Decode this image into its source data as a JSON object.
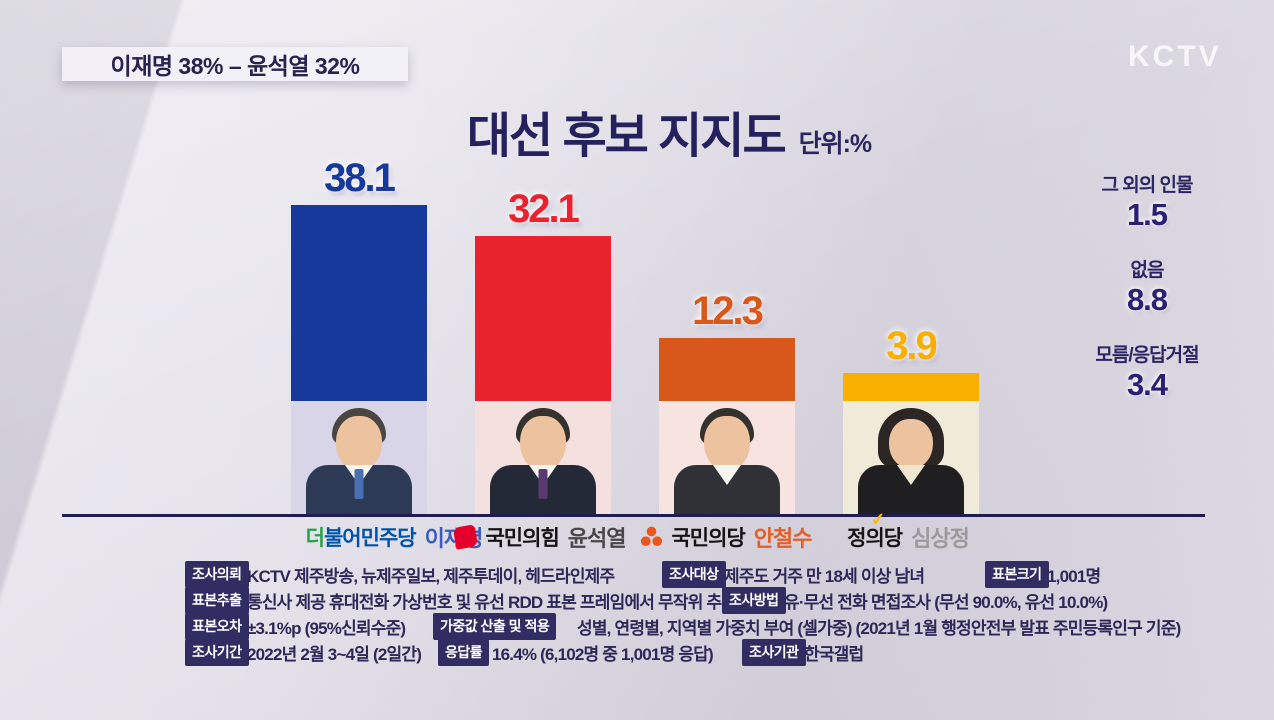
{
  "header": {
    "ticker": "이재명 38% – 윤석열 32%",
    "watermark": "KCTV",
    "title": "대선 후보 지지도",
    "unit": "단위:%"
  },
  "chart_data": {
    "type": "bar",
    "title": "대선 후보 지지도",
    "unit": "%",
    "categories": [
      "이재명",
      "윤석열",
      "안철수",
      "심상정"
    ],
    "values": [
      38.1,
      32.1,
      12.3,
      3.9
    ],
    "bar_colors": [
      "#16399b",
      "#e9232e",
      "#d8571b",
      "#f9af00"
    ],
    "ylim": [
      0,
      40
    ],
    "legend_position": "none",
    "grid": false,
    "candidates": [
      {
        "name": "이재명",
        "party": "더불어민주당",
        "value": "38.1",
        "name_color": "#3a5dbe"
      },
      {
        "name": "윤석열",
        "party": "국민의힘",
        "value": "32.1",
        "name_color": "#474747"
      },
      {
        "name": "안철수",
        "party": "국민의당",
        "value": "12.3",
        "name_color": "#e55f25"
      },
      {
        "name": "심상정",
        "party": "정의당",
        "value": "3.9",
        "name_color": "#9a9a9a"
      }
    ],
    "party1_prefix": "더",
    "party1_rest": "불어민주당",
    "others": [
      {
        "label": "그 외의 인물",
        "value": "1.5"
      },
      {
        "label": "없음",
        "value": "8.8"
      },
      {
        "label": "모름/응답거절",
        "value": "3.4"
      }
    ]
  },
  "survey": {
    "inquiry_label": "조사의뢰",
    "inquiry": "KCTV 제주방송, 뉴제주일보, 제주투데이, 헤드라인제주",
    "target_label": "조사대상",
    "target": "제주도 거주 만 18세 이상 남녀",
    "sample_size_label": "표본크기",
    "sample_size": "1,001명",
    "sampling_label": "표본추출",
    "sampling": "통신사 제공 휴대전화 가상번호 및 유선 RDD 표본 프레임에서 무작위 추출",
    "method_label": "조사방법",
    "method": "유·무선 전화 면접조사 (무선 90.0%, 유선 10.0%)",
    "error_label": "표본오차",
    "error": "±3.1%p (95%신뢰수준)",
    "weighting_label": "가중값 산출 및 적용",
    "weighting": "성별, 연령별, 지역별 가중치 부여 (셀가중) (2021년 1월 행정안전부 발표 주민등록인구 기준)",
    "period_label": "조사기간",
    "period": "2022년 2월 3~4일 (2일간)",
    "response_label": "응답률",
    "response": "16.4% (6,102명 중 1,001명 응답)",
    "agency_label": "조사기관",
    "agency": "한국갤럽"
  }
}
